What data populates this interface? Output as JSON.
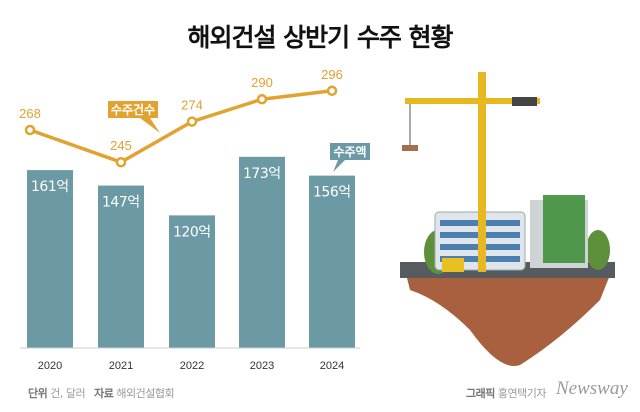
{
  "title": "해외건설 상반기 수주 현황",
  "chart_data": {
    "type": "bar+line",
    "categories": [
      "2020",
      "2021",
      "2022",
      "2023",
      "2024"
    ],
    "series": [
      {
        "name": "수주액",
        "type": "bar",
        "unit": "억 달러",
        "values": [
          161,
          147,
          120,
          173,
          156
        ],
        "labels": [
          "161억",
          "147억",
          "120억",
          "173억",
          "156억"
        ],
        "color": "#6b9aa5"
      },
      {
        "name": "수주건수",
        "type": "line",
        "unit": "건",
        "values": [
          268,
          245,
          274,
          290,
          296
        ],
        "labels": [
          "268",
          "245",
          "274",
          "290",
          "296"
        ],
        "color": "#e2a22f"
      }
    ]
  },
  "footer": {
    "unit_label": "단위",
    "unit_value": "건, 달러",
    "source_label": "자료",
    "source_value": "해외건설협회",
    "credit_label": "그래픽",
    "credit_value": "홍연택기자",
    "logo": "Newsway"
  }
}
